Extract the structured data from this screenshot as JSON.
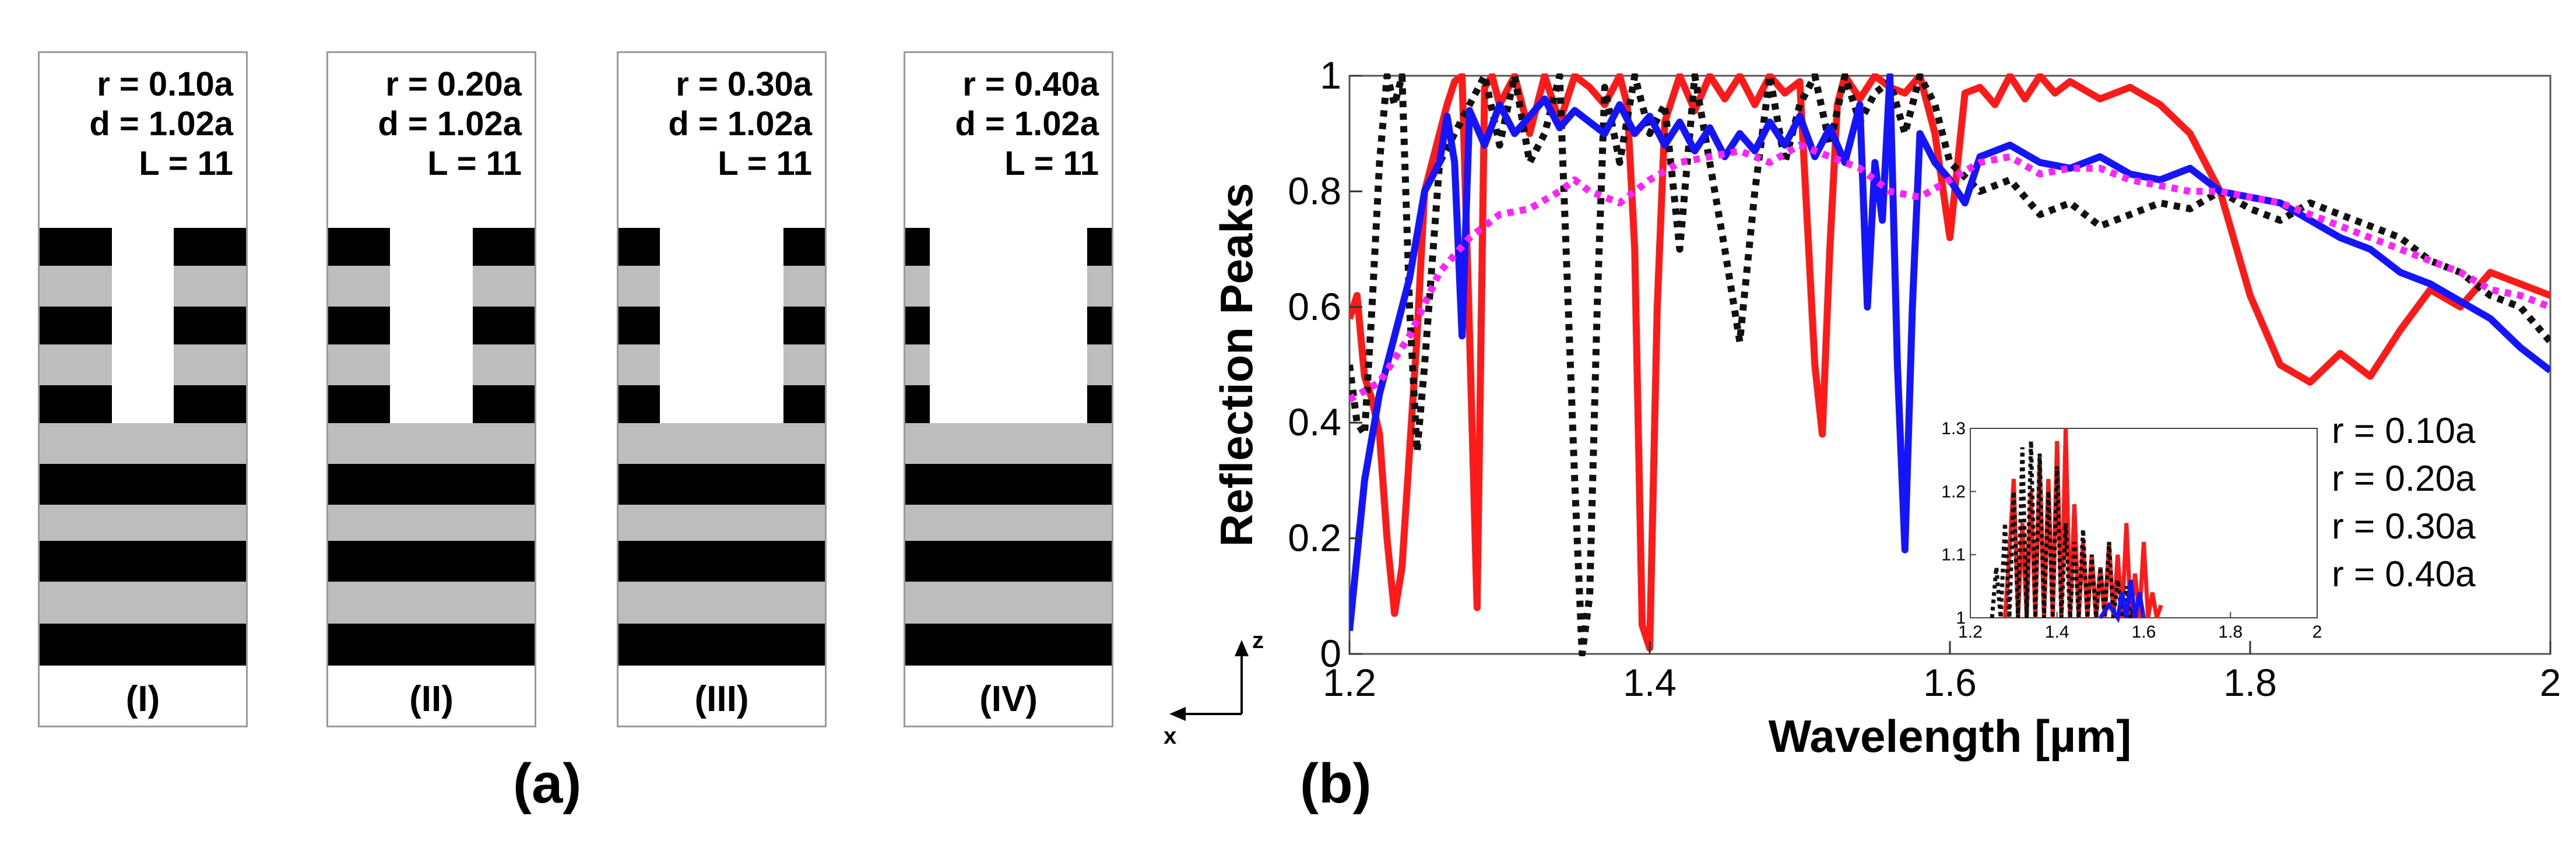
{
  "panel_a": {
    "label": "(a)",
    "structures": [
      {
        "id": "I",
        "r": "r = 0.10a",
        "d": "d = 1.02a",
        "L": "L = 11",
        "roman": "(I)",
        "hole_fraction": 0.3
      },
      {
        "id": "II",
        "r": "r = 0.20a",
        "d": "d = 1.02a",
        "L": "L = 11",
        "roman": "(II)",
        "hole_fraction": 0.4
      },
      {
        "id": "III",
        "r": "r = 0.30a",
        "d": "d = 1.02a",
        "L": "L = 11",
        "roman": "(III)",
        "hole_fraction": 0.6
      },
      {
        "id": "IV",
        "r": "r = 0.40a",
        "d": "d = 1.02a",
        "L": "L = 11",
        "roman": "(IV)",
        "hole_fraction": 0.76
      }
    ]
  },
  "panel_b": {
    "label": "(b)",
    "axis_z": "z",
    "axis_x": "x"
  },
  "chart_data": {
    "type": "line",
    "title": "",
    "xlabel": "Wavelength [µm]",
    "ylabel": "Reflection Peaks",
    "xlim": [
      1.2,
      2.0
    ],
    "ylim": [
      0,
      1
    ],
    "xticks": [
      "1.2",
      "1.4",
      "1.6",
      "1.8",
      "2"
    ],
    "yticks": [
      "0",
      "0.2",
      "0.4",
      "0.6",
      "0.8",
      "1"
    ],
    "grid": false,
    "legend_position": "bottom-right",
    "series": [
      {
        "name": "r = 0.10a",
        "color": "#ff1a1a",
        "style": "solid",
        "x": [
          1.2,
          1.205,
          1.21,
          1.215,
          1.22,
          1.225,
          1.23,
          1.235,
          1.24,
          1.245,
          1.25,
          1.26,
          1.265,
          1.27,
          1.275,
          1.28,
          1.285,
          1.29,
          1.295,
          1.3,
          1.31,
          1.32,
          1.33,
          1.34,
          1.35,
          1.36,
          1.37,
          1.38,
          1.385,
          1.39,
          1.395,
          1.4,
          1.405,
          1.41,
          1.42,
          1.43,
          1.44,
          1.45,
          1.46,
          1.47,
          1.48,
          1.49,
          1.5,
          1.51,
          1.515,
          1.52,
          1.525,
          1.53,
          1.54,
          1.55,
          1.56,
          1.57,
          1.58,
          1.59,
          1.6,
          1.61,
          1.62,
          1.63,
          1.64,
          1.65,
          1.66,
          1.67,
          1.68,
          1.7,
          1.72,
          1.74,
          1.76,
          1.78,
          1.8,
          1.82,
          1.84,
          1.86,
          1.88,
          1.9,
          1.92,
          1.94,
          1.96,
          1.98,
          2.0
        ],
        "values": [
          0.58,
          0.62,
          0.48,
          0.44,
          0.38,
          0.2,
          0.07,
          0.15,
          0.35,
          0.55,
          0.8,
          0.9,
          0.95,
          0.99,
          1.0,
          0.55,
          0.08,
          0.98,
          1.0,
          0.95,
          1.0,
          0.9,
          1.0,
          0.92,
          1.0,
          0.98,
          0.95,
          1.0,
          0.95,
          0.7,
          0.05,
          0.01,
          0.6,
          0.92,
          1.0,
          0.94,
          1.0,
          0.96,
          1.0,
          0.95,
          1.0,
          0.97,
          0.99,
          0.5,
          0.38,
          0.7,
          0.95,
          1.0,
          0.96,
          1.0,
          0.98,
          0.97,
          1.0,
          0.9,
          0.72,
          0.97,
          0.98,
          0.95,
          1.0,
          0.96,
          1.0,
          0.97,
          0.99,
          0.96,
          0.98,
          0.95,
          0.9,
          0.8,
          0.62,
          0.5,
          0.47,
          0.52,
          0.48,
          0.56,
          0.63,
          0.6,
          0.66,
          0.64,
          0.62
        ]
      },
      {
        "name": "r = 0.20a",
        "color": "#111111",
        "style": "dotted",
        "x": [
          1.2,
          1.205,
          1.21,
          1.215,
          1.22,
          1.225,
          1.23,
          1.235,
          1.24,
          1.245,
          1.25,
          1.26,
          1.27,
          1.28,
          1.29,
          1.3,
          1.31,
          1.32,
          1.33,
          1.34,
          1.35,
          1.355,
          1.36,
          1.365,
          1.37,
          1.38,
          1.39,
          1.4,
          1.41,
          1.42,
          1.43,
          1.44,
          1.45,
          1.46,
          1.47,
          1.48,
          1.49,
          1.5,
          1.51,
          1.52,
          1.53,
          1.54,
          1.55,
          1.56,
          1.57,
          1.58,
          1.59,
          1.6,
          1.62,
          1.64,
          1.66,
          1.68,
          1.7,
          1.72,
          1.74,
          1.76,
          1.78,
          1.8,
          1.82,
          1.84,
          1.86,
          1.88,
          1.9,
          1.92,
          1.94,
          1.96,
          1.98,
          2.0
        ],
        "values": [
          0.5,
          0.4,
          0.38,
          0.6,
          0.85,
          1.0,
          0.95,
          1.0,
          0.6,
          0.35,
          0.5,
          0.85,
          0.9,
          0.95,
          1.0,
          0.88,
          1.0,
          0.85,
          0.9,
          1.0,
          0.3,
          0.0,
          0.1,
          0.6,
          0.98,
          0.85,
          1.0,
          0.9,
          0.95,
          0.7,
          1.0,
          0.85,
          0.7,
          0.54,
          0.8,
          1.0,
          0.85,
          0.95,
          1.0,
          0.88,
          1.0,
          0.92,
          0.97,
          0.99,
          0.9,
          1.0,
          0.95,
          0.85,
          0.8,
          0.82,
          0.76,
          0.78,
          0.74,
          0.76,
          0.78,
          0.77,
          0.8,
          0.77,
          0.75,
          0.78,
          0.76,
          0.74,
          0.72,
          0.68,
          0.66,
          0.62,
          0.6,
          0.54
        ]
      },
      {
        "name": "r = 0.30a",
        "color": "#1414ff",
        "style": "solid",
        "x": [
          1.2,
          1.21,
          1.22,
          1.23,
          1.24,
          1.25,
          1.26,
          1.265,
          1.27,
          1.275,
          1.28,
          1.29,
          1.3,
          1.31,
          1.32,
          1.33,
          1.34,
          1.35,
          1.36,
          1.37,
          1.38,
          1.39,
          1.4,
          1.41,
          1.42,
          1.43,
          1.44,
          1.45,
          1.46,
          1.47,
          1.48,
          1.49,
          1.5,
          1.51,
          1.52,
          1.53,
          1.54,
          1.545,
          1.55,
          1.555,
          1.56,
          1.565,
          1.57,
          1.575,
          1.58,
          1.59,
          1.6,
          1.61,
          1.62,
          1.64,
          1.66,
          1.68,
          1.7,
          1.72,
          1.74,
          1.76,
          1.78,
          1.8,
          1.82,
          1.84,
          1.86,
          1.88,
          1.9,
          1.92,
          1.94,
          1.96,
          1.98,
          2.0
        ],
        "values": [
          0.04,
          0.3,
          0.45,
          0.55,
          0.65,
          0.8,
          0.85,
          0.93,
          0.85,
          0.55,
          0.94,
          0.88,
          0.95,
          0.9,
          0.93,
          0.96,
          0.91,
          0.94,
          0.92,
          0.9,
          0.95,
          0.9,
          0.93,
          0.88,
          0.92,
          0.87,
          0.91,
          0.86,
          0.9,
          0.87,
          0.92,
          0.88,
          0.93,
          0.86,
          0.91,
          0.85,
          0.95,
          0.6,
          0.85,
          0.75,
          1.0,
          0.5,
          0.18,
          0.6,
          0.9,
          0.85,
          0.82,
          0.78,
          0.86,
          0.88,
          0.85,
          0.84,
          0.86,
          0.83,
          0.82,
          0.84,
          0.8,
          0.79,
          0.78,
          0.75,
          0.72,
          0.7,
          0.66,
          0.64,
          0.61,
          0.58,
          0.53,
          0.49
        ]
      },
      {
        "name": "r = 0.40a",
        "color": "#ff22ff",
        "style": "dotted",
        "x": [
          1.2,
          1.22,
          1.24,
          1.26,
          1.28,
          1.3,
          1.32,
          1.34,
          1.35,
          1.36,
          1.38,
          1.4,
          1.42,
          1.44,
          1.46,
          1.48,
          1.5,
          1.52,
          1.54,
          1.56,
          1.58,
          1.6,
          1.62,
          1.64,
          1.66,
          1.68,
          1.7,
          1.72,
          1.74,
          1.76,
          1.78,
          1.8,
          1.82,
          1.84,
          1.86,
          1.88,
          1.9,
          1.92,
          1.94,
          1.96,
          1.98,
          2.0
        ],
        "values": [
          0.44,
          0.47,
          0.55,
          0.66,
          0.72,
          0.76,
          0.77,
          0.8,
          0.82,
          0.8,
          0.78,
          0.82,
          0.85,
          0.86,
          0.87,
          0.85,
          0.88,
          0.86,
          0.84,
          0.8,
          0.79,
          0.82,
          0.85,
          0.86,
          0.83,
          0.84,
          0.84,
          0.82,
          0.81,
          0.8,
          0.8,
          0.79,
          0.78,
          0.76,
          0.74,
          0.72,
          0.7,
          0.68,
          0.66,
          0.63,
          0.62,
          0.6
        ]
      }
    ],
    "inset": {
      "xlim": [
        1.2,
        2.0
      ],
      "ylim": [
        1.0,
        1.3
      ],
      "xticks": [
        "1.2",
        "1.4",
        "1.6",
        "1.8",
        "2"
      ],
      "yticks": [
        "1",
        "1.1",
        "1.2",
        "1.3"
      ],
      "series": [
        {
          "name": "r = 0.10a",
          "color": "#ff1a1a",
          "style": "solid",
          "x": [
            1.28,
            1.29,
            1.3,
            1.31,
            1.32,
            1.33,
            1.34,
            1.35,
            1.36,
            1.37,
            1.38,
            1.39,
            1.4,
            1.41,
            1.42,
            1.43,
            1.44,
            1.45,
            1.46,
            1.47,
            1.48,
            1.49,
            1.5,
            1.51,
            1.52,
            1.53,
            1.54,
            1.55,
            1.56,
            1.57,
            1.58,
            1.59,
            1.6,
            1.61,
            1.62,
            1.63,
            1.64
          ],
          "values": [
            1.0,
            1.1,
            1.22,
            1.0,
            1.15,
            1.0,
            1.2,
            1.0,
            1.25,
            1.0,
            1.22,
            1.0,
            1.28,
            1.0,
            1.3,
            1.0,
            1.18,
            1.0,
            1.12,
            1.0,
            1.1,
            1.0,
            1.08,
            1.0,
            1.12,
            1.0,
            1.1,
            1.0,
            1.15,
            1.0,
            1.07,
            1.0,
            1.12,
            1.0,
            1.04,
            1.0,
            1.02
          ]
        },
        {
          "name": "r = 0.20a",
          "color": "#111111",
          "style": "dotted",
          "x": [
            1.25,
            1.26,
            1.27,
            1.28,
            1.29,
            1.3,
            1.31,
            1.32,
            1.33,
            1.34,
            1.35,
            1.36,
            1.37,
            1.38,
            1.39,
            1.4,
            1.41,
            1.42,
            1.43,
            1.44,
            1.45,
            1.46,
            1.47,
            1.48,
            1.49,
            1.5,
            1.51,
            1.52,
            1.53,
            1.54,
            1.55,
            1.56,
            1.57,
            1.58
          ],
          "values": [
            1.0,
            1.08,
            1.0,
            1.15,
            1.0,
            1.2,
            1.0,
            1.27,
            1.0,
            1.28,
            1.0,
            1.26,
            1.0,
            1.2,
            1.0,
            1.24,
            1.0,
            1.15,
            1.0,
            1.12,
            1.0,
            1.14,
            1.0,
            1.1,
            1.0,
            1.08,
            1.0,
            1.12,
            1.0,
            1.06,
            1.0,
            1.05,
            1.0,
            1.02
          ]
        },
        {
          "name": "r = 0.30a",
          "color": "#1414ff",
          "style": "solid",
          "x": [
            1.5,
            1.52,
            1.54,
            1.55,
            1.56,
            1.57,
            1.58,
            1.59,
            1.6
          ],
          "values": [
            1.0,
            1.02,
            1.0,
            1.04,
            1.0,
            1.06,
            1.0,
            1.04,
            1.0
          ]
        }
      ]
    }
  }
}
